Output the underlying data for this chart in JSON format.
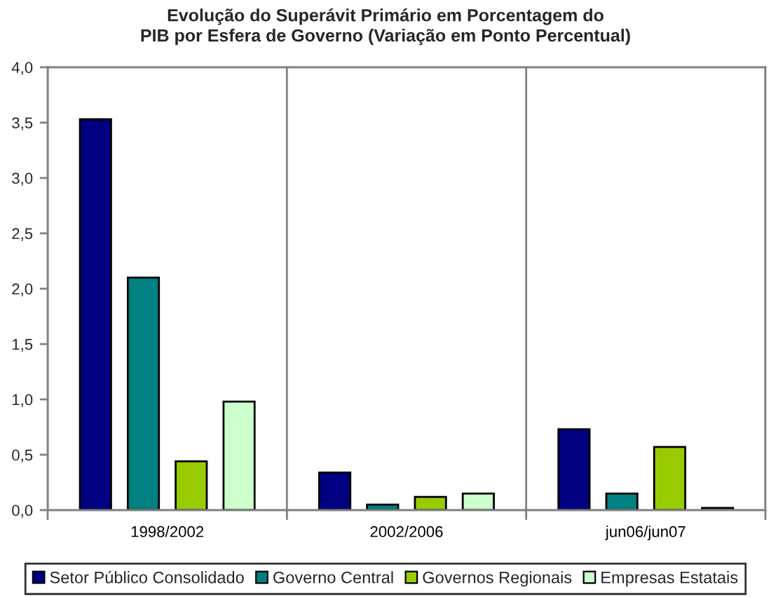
{
  "chart_data": {
    "type": "bar",
    "title": "Evolução do Superávit Primário em Porcentagem do\nPIB por Esfera de Governo (Variação em Ponto Percentual)",
    "categories": [
      "1998/2002",
      "2002/2006",
      "jun06/jun07"
    ],
    "series": [
      {
        "name": "Setor Público Consolidado",
        "color": "#000080",
        "values": [
          3.53,
          0.34,
          0.73
        ]
      },
      {
        "name": "Governo Central",
        "color": "#008080",
        "values": [
          2.1,
          0.05,
          0.15
        ]
      },
      {
        "name": "Governos Regionais",
        "color": "#99cc00",
        "values": [
          0.44,
          0.12,
          0.57
        ]
      },
      {
        "name": "Empresas Estatais",
        "color": "#ccffcc",
        "values": [
          0.98,
          0.15,
          0.02
        ]
      }
    ],
    "ylim": [
      0,
      4
    ],
    "yticks": [
      {
        "value": 0,
        "label": "0,0"
      },
      {
        "value": 0.5,
        "label": "0,5"
      },
      {
        "value": 1,
        "label": "1,0"
      },
      {
        "value": 1.5,
        "label": "1,5"
      },
      {
        "value": 2,
        "label": "2,0"
      },
      {
        "value": 2.5,
        "label": "2,5"
      },
      {
        "value": 3,
        "label": "3,0"
      },
      {
        "value": 3.5,
        "label": "3,5"
      },
      {
        "value": 4,
        "label": "4,0"
      }
    ],
    "grid": "x",
    "legend": "bottom"
  }
}
